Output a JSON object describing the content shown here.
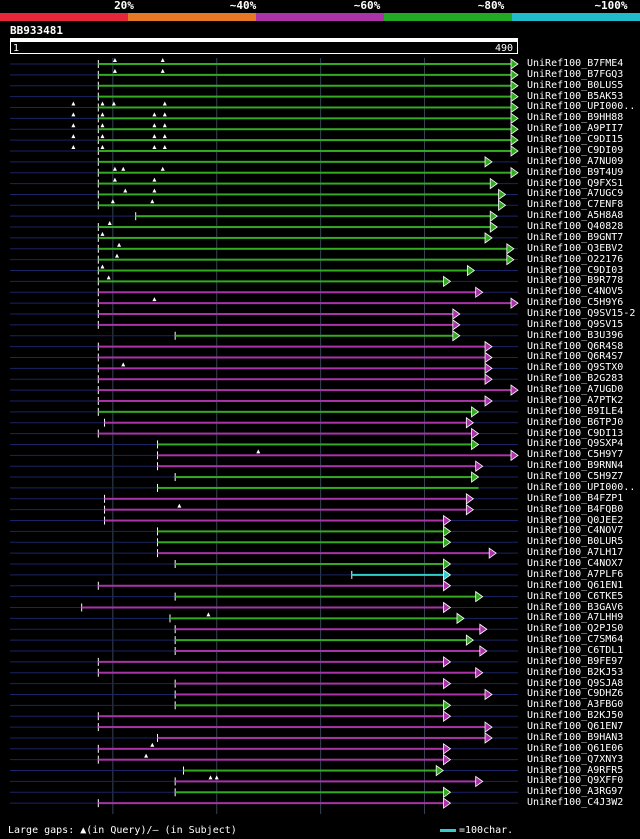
{
  "legend": [
    {
      "label": "20%",
      "color": "#e8263a"
    },
    {
      "label": "~40%",
      "color": "#e87726"
    },
    {
      "label": "~60%",
      "color": "#aa33aa"
    },
    {
      "label": "~80%",
      "color": "#22aa22"
    },
    {
      "label": "~100%",
      "color": "#22bbcc"
    }
  ],
  "query": {
    "name": "BB933481",
    "start": "1",
    "end": "490",
    "length": 490
  },
  "colors": {
    "green": "#33aa22",
    "magenta": "#aa33aa",
    "cyan": "#33cccc",
    "navy": "#1a2466",
    "grid": "#334455"
  },
  "hits": [
    {
      "id": "UniRef100_B7FME4",
      "c": "g",
      "s": 86,
      "e": 490,
      "st": 1,
      "ar": true,
      "gaps": [
        102,
        148
      ]
    },
    {
      "id": "UniRef100_B7FGQ3",
      "c": "g",
      "s": 86,
      "e": 490,
      "st": 1,
      "ar": true,
      "gaps": [
        102,
        148
      ]
    },
    {
      "id": "UniRef100_B0LUS5",
      "c": "g",
      "s": 86,
      "e": 490,
      "st": 1,
      "ar": true,
      "gaps": []
    },
    {
      "id": "UniRef100_B5AK53",
      "c": "g",
      "s": 86,
      "e": 490,
      "st": 1,
      "ar": true,
      "gaps": []
    },
    {
      "id": "UniRef100_UPI000..",
      "c": "g",
      "s": 86,
      "e": 490,
      "st": 1,
      "ar": true,
      "gaps": [
        62,
        90,
        101,
        150
      ]
    },
    {
      "id": "UniRef100_B9HH88",
      "c": "g",
      "s": 86,
      "e": 490,
      "st": 1,
      "ar": true,
      "gaps": [
        62,
        90,
        140,
        150
      ]
    },
    {
      "id": "UniRef100_A9PII7",
      "c": "g",
      "s": 86,
      "e": 490,
      "st": 1,
      "ar": true,
      "gaps": [
        62,
        90,
        140,
        150
      ]
    },
    {
      "id": "UniRef100_C9DI15",
      "c": "g",
      "s": 86,
      "e": 490,
      "st": 1,
      "ar": true,
      "gaps": [
        62,
        90,
        140,
        150
      ]
    },
    {
      "id": "UniRef100_C9DI09",
      "c": "g",
      "s": 86,
      "e": 490,
      "st": 1,
      "ar": true,
      "gaps": [
        62,
        90,
        140,
        150
      ]
    },
    {
      "id": "UniRef100_A7NU09",
      "c": "g",
      "s": 86,
      "e": 465,
      "st": 1,
      "ar": true,
      "gaps": []
    },
    {
      "id": "UniRef100_B9T4U9",
      "c": "g",
      "s": 86,
      "e": 490,
      "st": 1,
      "ar": true,
      "gaps": [
        102,
        110,
        148
      ]
    },
    {
      "id": "UniRef100_Q9FXS1",
      "c": "g",
      "s": 86,
      "e": 470,
      "st": 1,
      "ar": true,
      "gaps": [
        102,
        140
      ]
    },
    {
      "id": "UniRef100_A7UGC9",
      "c": "g",
      "s": 86,
      "e": 478,
      "st": 1,
      "ar": true,
      "gaps": [
        112,
        140
      ]
    },
    {
      "id": "UniRef100_C7ENF8",
      "c": "g",
      "s": 86,
      "e": 478,
      "st": 1,
      "ar": true,
      "gaps": [
        100,
        138
      ]
    },
    {
      "id": "UniRef100_A5H8A8",
      "c": "g",
      "s": 122,
      "e": 470,
      "st": 1,
      "ar": true,
      "gaps": []
    },
    {
      "id": "UniRef100_Q40828",
      "c": "g",
      "s": 86,
      "e": 470,
      "st": 1,
      "ar": true,
      "gaps": [
        97
      ]
    },
    {
      "id": "UniRef100_B9GNT7",
      "c": "g",
      "s": 86,
      "e": 465,
      "st": 1,
      "ar": true,
      "gaps": [
        90
      ]
    },
    {
      "id": "UniRef100_Q3EBV2",
      "c": "g",
      "s": 86,
      "e": 486,
      "st": 1,
      "ar": true,
      "gaps": [
        106
      ]
    },
    {
      "id": "UniRef100_O22176",
      "c": "g",
      "s": 86,
      "e": 486,
      "st": 1,
      "ar": true,
      "gaps": [
        104
      ]
    },
    {
      "id": "UniRef100_C9DI03",
      "c": "g",
      "s": 86,
      "e": 448,
      "st": 1,
      "ar": true,
      "gaps": [
        90
      ]
    },
    {
      "id": "UniRef100_B9R778",
      "c": "g",
      "s": 86,
      "e": 425,
      "st": 1,
      "ar": true,
      "gaps": [
        96
      ]
    },
    {
      "id": "UniRef100_C4NOV5",
      "c": "m",
      "s": 86,
      "e": 456,
      "st": 1,
      "ar": true,
      "gaps": []
    },
    {
      "id": "UniRef100_C5H9Y6",
      "c": "m",
      "s": 86,
      "e": 490,
      "st": 1,
      "ar": true,
      "gaps": [
        140
      ]
    },
    {
      "id": "UniRef100_Q9SV15-2",
      "c": "m",
      "s": 86,
      "e": 434,
      "st": 1,
      "ar": true,
      "gaps": []
    },
    {
      "id": "UniRef100_Q9SV15",
      "c": "m",
      "s": 86,
      "e": 434,
      "st": 1,
      "ar": true,
      "gaps": []
    },
    {
      "id": "UniRef100_B3U396",
      "c": "g",
      "s": 160,
      "e": 434,
      "st": 1,
      "ar": true,
      "gaps": []
    },
    {
      "id": "UniRef100_Q6R4S8",
      "c": "m",
      "s": 86,
      "e": 465,
      "st": 1,
      "ar": true,
      "gaps": []
    },
    {
      "id": "UniRef100_Q6R4S7",
      "c": "m",
      "s": 86,
      "e": 465,
      "st": 1,
      "ar": true,
      "gaps": []
    },
    {
      "id": "UniRef100_Q9STX0",
      "c": "m",
      "s": 86,
      "e": 465,
      "st": 1,
      "ar": true,
      "gaps": [
        110
      ]
    },
    {
      "id": "UniRef100_B2G283",
      "c": "m",
      "s": 86,
      "e": 465,
      "st": 1,
      "ar": true,
      "gaps": []
    },
    {
      "id": "UniRef100_A7UGD0",
      "c": "m",
      "s": 86,
      "e": 490,
      "st": 1,
      "ar": true,
      "gaps": []
    },
    {
      "id": "UniRef100_A7PTK2",
      "c": "m",
      "s": 86,
      "e": 465,
      "st": 1,
      "ar": true,
      "gaps": []
    },
    {
      "id": "UniRef100_B9ILE4",
      "c": "g",
      "s": 86,
      "e": 452,
      "st": 1,
      "ar": true,
      "gaps": []
    },
    {
      "id": "UniRef100_B6TPJ0",
      "c": "m",
      "s": 92,
      "e": 447,
      "st": 1,
      "ar": true,
      "gaps": []
    },
    {
      "id": "UniRef100_C9DI13",
      "c": "m",
      "s": 86,
      "e": 452,
      "st": 1,
      "ar": true,
      "gaps": []
    },
    {
      "id": "UniRef100_Q9SXP4",
      "c": "g",
      "s": 143,
      "e": 452,
      "st": 1,
      "ar": true,
      "gaps": []
    },
    {
      "id": "UniRef100_C5H9Y7",
      "c": "m",
      "s": 143,
      "e": 490,
      "st": 1,
      "ar": true,
      "gaps": [
        240
      ]
    },
    {
      "id": "UniRef100_B9RNN4",
      "c": "m",
      "s": 143,
      "e": 456,
      "st": 1,
      "ar": true,
      "gaps": []
    },
    {
      "id": "UniRef100_C5H9Z7",
      "c": "g",
      "s": 160,
      "e": 452,
      "st": 1,
      "ar": true,
      "gaps": []
    },
    {
      "id": "UniRef100_UPI000..",
      "c": "g",
      "s": 143,
      "e": 452,
      "st": 1,
      "ar": false,
      "gaps": []
    },
    {
      "id": "UniRef100_B4FZP1",
      "c": "m",
      "s": 92,
      "e": 447,
      "st": 1,
      "ar": true,
      "gaps": []
    },
    {
      "id": "UniRef100_B4FQB0",
      "c": "m",
      "s": 92,
      "e": 447,
      "st": 1,
      "ar": true,
      "gaps": [
        164
      ]
    },
    {
      "id": "UniRef100_Q0JEE2",
      "c": "m",
      "s": 92,
      "e": 425,
      "st": 1,
      "ar": true,
      "gaps": []
    },
    {
      "id": "UniRef100_C4NOV7",
      "c": "g",
      "s": 143,
      "e": 425,
      "st": 1,
      "ar": true,
      "gaps": []
    },
    {
      "id": "UniRef100_B0LUR5",
      "c": "g",
      "s": 143,
      "e": 425,
      "st": 1,
      "ar": true,
      "gaps": []
    },
    {
      "id": "UniRef100_A7LH17",
      "c": "m",
      "s": 143,
      "e": 469,
      "st": 1,
      "ar": true,
      "gaps": []
    },
    {
      "id": "UniRef100_C4NOX7",
      "c": "g",
      "s": 160,
      "e": 425,
      "st": 1,
      "ar": true,
      "gaps": []
    },
    {
      "id": "UniRef100_A7PLF6",
      "c": "c",
      "s": 330,
      "e": 425,
      "st": 1,
      "ar": true,
      "gaps": []
    },
    {
      "id": "UniRef100_Q61EN1",
      "c": "m",
      "s": 86,
      "e": 425,
      "st": 1,
      "ar": true,
      "gaps": []
    },
    {
      "id": "UniRef100_C6TKE5",
      "c": "g",
      "s": 160,
      "e": 456,
      "st": 1,
      "ar": true,
      "gaps": []
    },
    {
      "id": "UniRef100_B3GAV6",
      "c": "m",
      "s": 70,
      "e": 425,
      "st": 1,
      "ar": true,
      "gaps": []
    },
    {
      "id": "UniRef100_A7LHH9",
      "c": "g",
      "s": 155,
      "e": 438,
      "st": 1,
      "ar": true,
      "gaps": [
        192
      ]
    },
    {
      "id": "UniRef100_Q2PJS0",
      "c": "m",
      "s": 160,
      "e": 460,
      "st": 1,
      "ar": true,
      "gaps": []
    },
    {
      "id": "UniRef100_C7SM64",
      "c": "g",
      "s": 160,
      "e": 447,
      "st": 1,
      "ar": true,
      "gaps": []
    },
    {
      "id": "UniRef100_C6TDL1",
      "c": "m",
      "s": 160,
      "e": 460,
      "st": 1,
      "ar": true,
      "gaps": []
    },
    {
      "id": "UniRef100_B9FE97",
      "c": "m",
      "s": 86,
      "e": 425,
      "st": 1,
      "ar": true,
      "gaps": []
    },
    {
      "id": "UniRef100_B2KJ53",
      "c": "m",
      "s": 86,
      "e": 456,
      "st": 1,
      "ar": true,
      "gaps": []
    },
    {
      "id": "UniRef100_Q9SJA8",
      "c": "m",
      "s": 160,
      "e": 425,
      "st": 1,
      "ar": true,
      "gaps": []
    },
    {
      "id": "UniRef100_C9DHZ6",
      "c": "m",
      "s": 160,
      "e": 465,
      "st": 1,
      "ar": true,
      "gaps": []
    },
    {
      "id": "UniRef100_A3FBG0",
      "c": "g",
      "s": 160,
      "e": 425,
      "st": 1,
      "ar": true,
      "gaps": []
    },
    {
      "id": "UniRef100_B2KJ50",
      "c": "m",
      "s": 86,
      "e": 425,
      "st": 1,
      "ar": true,
      "gaps": []
    },
    {
      "id": "UniRef100_Q61EN7",
      "c": "m",
      "s": 86,
      "e": 465,
      "st": 1,
      "ar": true,
      "gaps": []
    },
    {
      "id": "UniRef100_B9HAN3",
      "c": "m",
      "s": 143,
      "e": 465,
      "st": 1,
      "ar": true,
      "gaps": []
    },
    {
      "id": "UniRef100_Q61E06",
      "c": "m",
      "s": 86,
      "e": 425,
      "st": 1,
      "ar": true,
      "gaps": [
        138
      ]
    },
    {
      "id": "UniRef100_Q7XNY3",
      "c": "m",
      "s": 86,
      "e": 425,
      "st": 1,
      "ar": true,
      "gaps": [
        132
      ]
    },
    {
      "id": "UniRef100_A9RFR5",
      "c": "g",
      "s": 168,
      "e": 418,
      "st": 1,
      "ar": true,
      "gaps": []
    },
    {
      "id": "UniRef100_Q9XFF0",
      "c": "m",
      "s": 160,
      "e": 456,
      "st": 1,
      "ar": true,
      "gaps": [
        194,
        200
      ]
    },
    {
      "id": "UniRef100_A3RG97",
      "c": "g",
      "s": 160,
      "e": 425,
      "st": 1,
      "ar": true,
      "gaps": []
    },
    {
      "id": "UniRef100_C4J3W2",
      "c": "m",
      "s": 86,
      "e": 425,
      "st": 1,
      "ar": true,
      "gaps": []
    }
  ],
  "footer": {
    "text": "Large gaps: ▲(in Query)/– (in Subject)",
    "scale": "=100char."
  }
}
